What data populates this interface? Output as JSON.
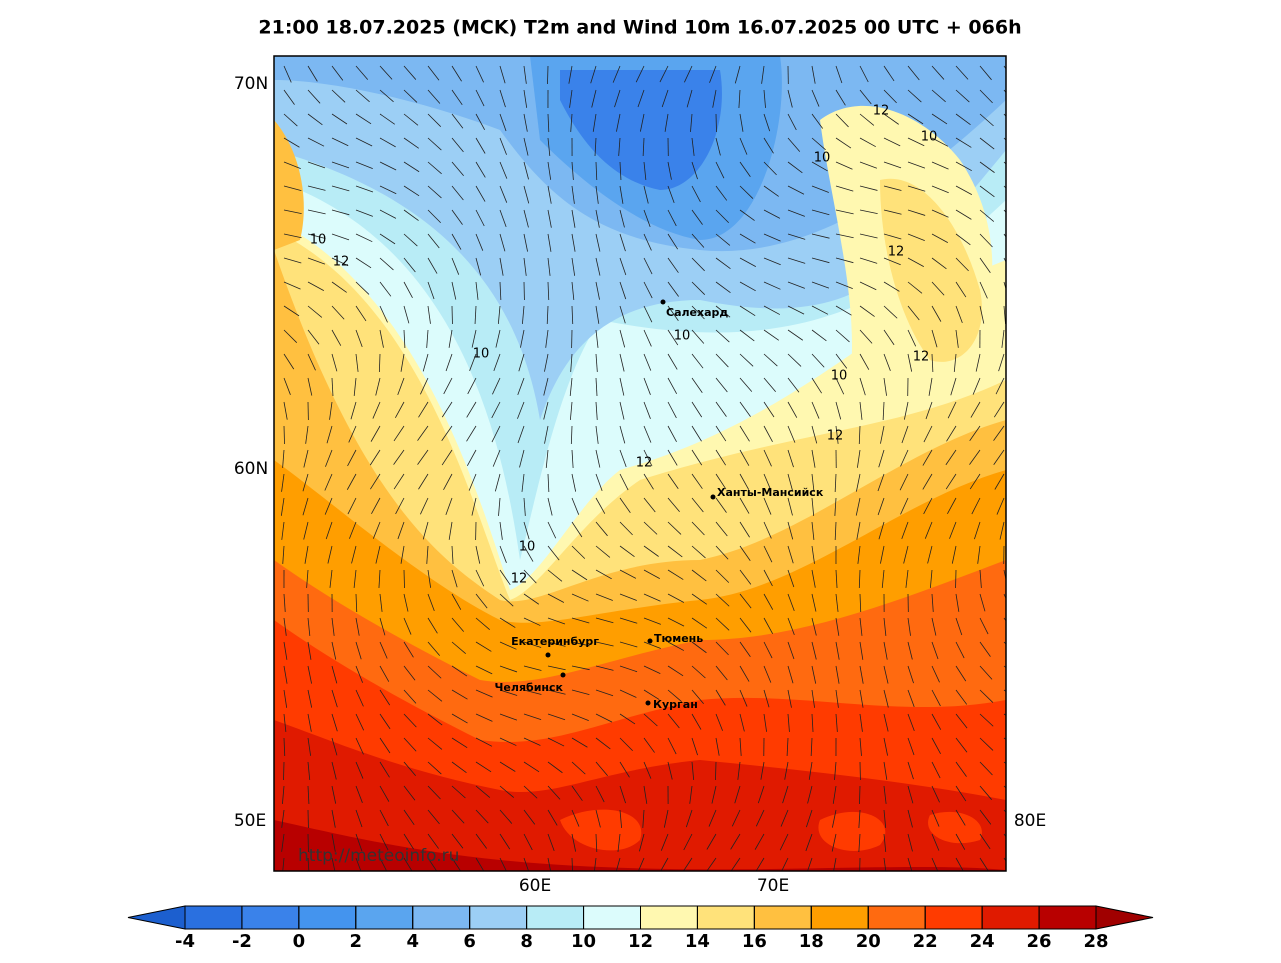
{
  "header": {
    "title": "21:00 18.07.2025 (MCK) T2m and Wind 10m 16.07.2025 00 UTC + 066h"
  },
  "axes": {
    "lat_labels": [
      "70N",
      "60N"
    ],
    "lon_labels": [
      "50E",
      "60E",
      "70E",
      "80E"
    ]
  },
  "cities": [
    "Салехард",
    "Ханты-Мансийск",
    "Тюмень",
    "Екатеринбург",
    "Челябинск",
    "Курган"
  ],
  "contour_labels": [
    12,
    10,
    10,
    10,
    12,
    12,
    10,
    10,
    12,
    10,
    12,
    12,
    10,
    12
  ],
  "watermark": "http://meteoinfo.ru",
  "colorbar": {
    "ticks": [
      -4,
      -2,
      0,
      2,
      4,
      6,
      8,
      10,
      12,
      14,
      16,
      18,
      20,
      22,
      24,
      26,
      28
    ],
    "under": "#1c5fcf",
    "colors": [
      "#2a70e0",
      "#3a82ea",
      "#4494ee",
      "#5aa5ef",
      "#7cb8f2",
      "#9ccff5",
      "#b8ecf6",
      "#dcfcfc",
      "#fff8b0",
      "#ffe27a",
      "#ffc040",
      "#ff9e00",
      "#ff6a10",
      "#ff3b00",
      "#e01a00",
      "#b80000"
    ],
    "over": "#a00000"
  }
}
